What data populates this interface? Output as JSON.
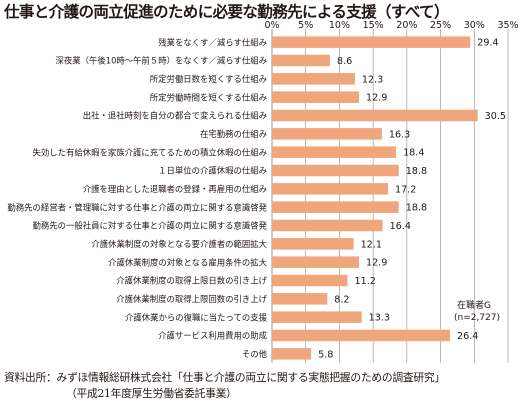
{
  "title": "仕事と介護の両立促進のために必要な勤務先による支援（すべて）",
  "note_lines": [
    "在職者G",
    "(n=2,727)"
  ],
  "source_lines": [
    "資料出所：みずほ情報総研株式会社「仕事と介護の両立に関する実態把握のための調査研究」",
    "（平成21年度厚生労働省委託事業）"
  ],
  "colors": {
    "bar": "#f0a67d",
    "grid": "#8c8c8c"
  },
  "chart_data": {
    "type": "bar",
    "orientation": "horizontal",
    "title": "仕事と介護の両立促進のために必要な勤務先による支援（すべて）",
    "xlim": [
      0,
      35
    ],
    "tick_labels": [
      "0%",
      "5%",
      "10%",
      "15%",
      "20%",
      "25%",
      "30%",
      "35%"
    ],
    "grid": true,
    "categories": [
      "残業をなくす／減らす仕組み",
      "深夜業（午後10時～午前５時）をなくす／減らす仕組み",
      "所定労働日数を短くする仕組み",
      "所定労働時間を短くする仕組み",
      "出社・退社時刻を自分の都合で変えられる仕組み",
      "在宅勤務の仕組み",
      "失効した有給休暇を家族介護に充てるための積立休暇の仕組み",
      "１日単位の介護休暇の仕組み",
      "介護を理由とした退職者の登録・再雇用の仕組み",
      "勤務先の経営者・管理職に対する仕事と介護の両立に関する意識啓発",
      "勤務先の一般社員に対する仕事と介護の両立に関する意識啓発",
      "介護休業制度の対象となる要介護者の範囲拡大",
      "介護休業制度の対象となる雇用条件の拡大",
      "介護休業制度の取得上限日数の引き上げ",
      "介護休業制度の取得上限回数の引き上げ",
      "介護休業からの復職に当たっての支援",
      "介護サービス利用費用の助成",
      "その他"
    ],
    "values": [
      29.4,
      8.6,
      12.3,
      12.9,
      30.5,
      16.3,
      18.4,
      18.8,
      17.2,
      18.8,
      16.4,
      12.1,
      12.9,
      11.2,
      8.2,
      13.3,
      26.4,
      5.8
    ],
    "value_labels": [
      "29.4",
      "8.6",
      "12.3",
      "12.9",
      "30.5",
      "16.3",
      "18.4",
      "18.8",
      "17.2",
      "18.8",
      "16.4",
      "12.1",
      "12.9",
      "11.2",
      "8.2",
      "13.3",
      "26.4",
      "5.8"
    ]
  }
}
